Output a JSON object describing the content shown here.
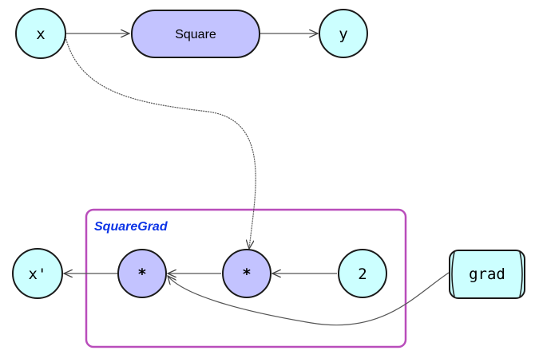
{
  "diagram": {
    "nodes": {
      "x": {
        "label": "x",
        "kind": "variable"
      },
      "square": {
        "label": "Square",
        "kind": "op"
      },
      "y": {
        "label": "y",
        "kind": "variable"
      },
      "x_prime": {
        "label": "x'",
        "kind": "variable"
      },
      "mul_left": {
        "label": "*",
        "kind": "op"
      },
      "mul_right": {
        "label": "*",
        "kind": "op"
      },
      "two": {
        "label": "2",
        "kind": "variable"
      },
      "grad": {
        "label": "grad",
        "kind": "variable"
      }
    },
    "group": {
      "label": "SquareGrad"
    },
    "edges": [
      {
        "from": "x",
        "to": "square"
      },
      {
        "from": "square",
        "to": "y"
      },
      {
        "from": "x",
        "to": "mul_right"
      },
      {
        "from": "two",
        "to": "mul_right"
      },
      {
        "from": "mul_right",
        "to": "mul_left"
      },
      {
        "from": "grad",
        "to": "mul_left"
      },
      {
        "from": "mul_left",
        "to": "x_prime"
      }
    ],
    "colors": {
      "variable_fill": "#ccffff",
      "op_fill": "#c3c3ff",
      "stroke": "#1a1a1a",
      "edge": "#555555",
      "group_border": "#b94dbb",
      "group_label": "#0b33e6"
    }
  }
}
